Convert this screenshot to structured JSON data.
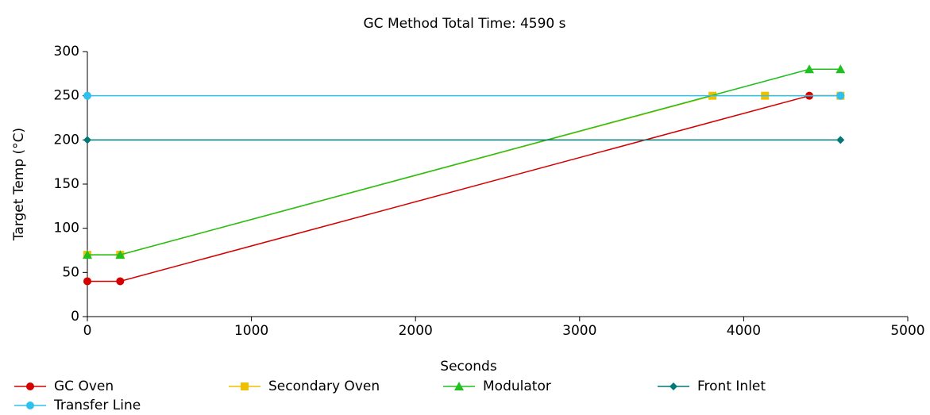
{
  "chart_data": {
    "type": "line",
    "title": "GC Method Total Time: 4590 s",
    "x_label": "Seconds",
    "y_label": "Target Temp (°C)",
    "xlim": [
      0,
      5000
    ],
    "xticks": [
      0,
      1000,
      2000,
      3000,
      4000,
      5000
    ],
    "ylim": [
      0,
      300
    ],
    "yticks": [
      0,
      50,
      100,
      150,
      200,
      250,
      300
    ],
    "grid": false,
    "legend": "bottom",
    "series": [
      {
        "name": "GC Oven",
        "color": "#d40000",
        "marker": "circle",
        "x": [
          0,
          200,
          4400,
          4590
        ],
        "values": [
          40,
          40,
          250,
          250
        ]
      },
      {
        "name": "Secondary Oven",
        "color": "#f0c000",
        "marker": "square",
        "x": [
          0,
          200,
          3810,
          4130,
          4590
        ],
        "values": [
          70,
          70,
          250,
          250,
          250
        ]
      },
      {
        "name": "Modulator",
        "color": "#20c020",
        "marker": "triangle",
        "x": [
          0,
          200,
          4400,
          4590
        ],
        "values": [
          70,
          70,
          280,
          280
        ]
      },
      {
        "name": "Front Inlet",
        "color": "#007878",
        "marker": "diamond",
        "x": [
          0,
          4590
        ],
        "values": [
          200,
          200
        ]
      },
      {
        "name": "Transfer Line",
        "color": "#30c0f0",
        "marker": "circle",
        "x": [
          0,
          4590
        ],
        "values": [
          250,
          250
        ]
      }
    ]
  }
}
